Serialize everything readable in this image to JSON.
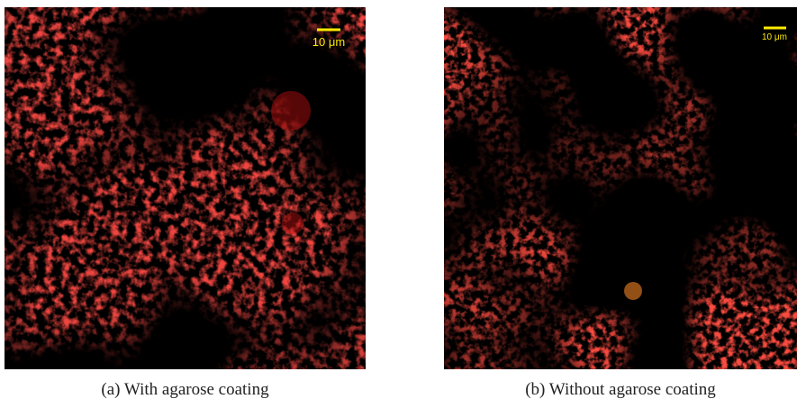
{
  "figures": [
    {
      "scale_bar": "10 μm",
      "caption": "(a) With agarose coating"
    },
    {
      "scale_bar": "10 μm",
      "caption": "(b) Without agarose coating"
    }
  ]
}
